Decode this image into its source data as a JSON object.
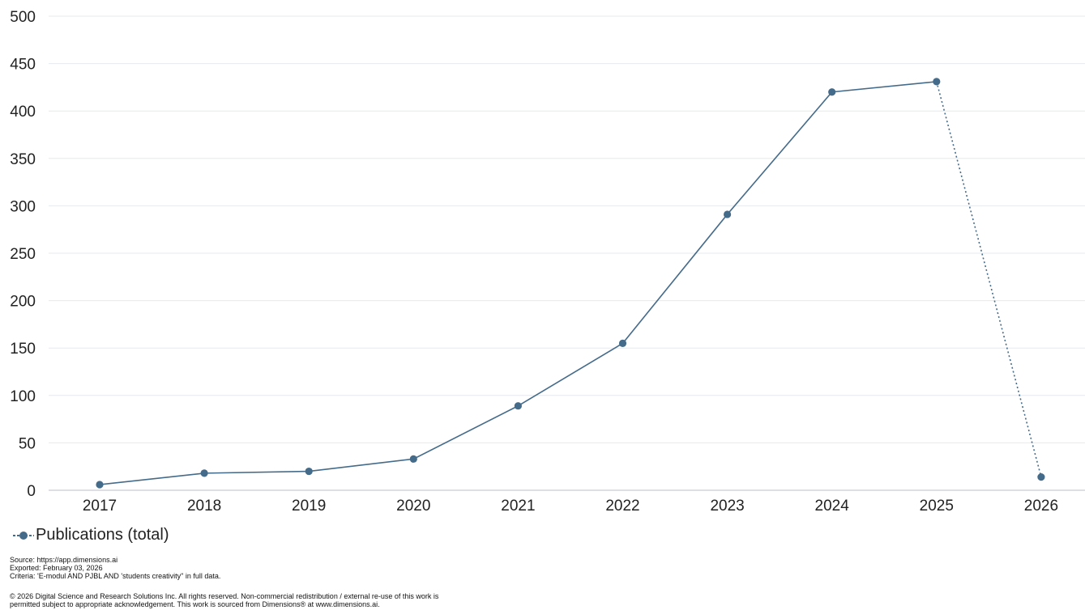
{
  "chart_data": {
    "type": "line",
    "title": "",
    "xlabel": "",
    "ylabel": "",
    "categories": [
      "2017",
      "2018",
      "2019",
      "2020",
      "2021",
      "2022",
      "2023",
      "2024",
      "2025",
      "2026"
    ],
    "series": [
      {
        "name": "Publications (total)",
        "values": [
          6,
          18,
          20,
          33,
          89,
          155,
          291,
          420,
          431,
          14
        ],
        "color": "#446b8a",
        "dotted_last_segment": true
      }
    ],
    "ylim": [
      0,
      500
    ],
    "yticks": [
      0,
      50,
      100,
      150,
      200,
      250,
      300,
      350,
      400,
      450,
      500
    ],
    "grid": true,
    "legend_position": "bottom-left"
  },
  "legend": {
    "label": "Publications (total)"
  },
  "footer": {
    "source": "Source: https://app.dimensions.ai",
    "exported": "Exported: February 03, 2026",
    "criteria": "Criteria: 'E-modul AND PJBL AND 'students creativity\" in full data.",
    "copyright_line1": "© 2026 Digital Science and Research Solutions Inc. All rights reserved. Non-commercial redistribution / external re-use of this work is",
    "copyright_line2": "permitted subject to appropriate acknowledgement. This work is sourced from Dimensions® at www.dimensions.ai."
  }
}
